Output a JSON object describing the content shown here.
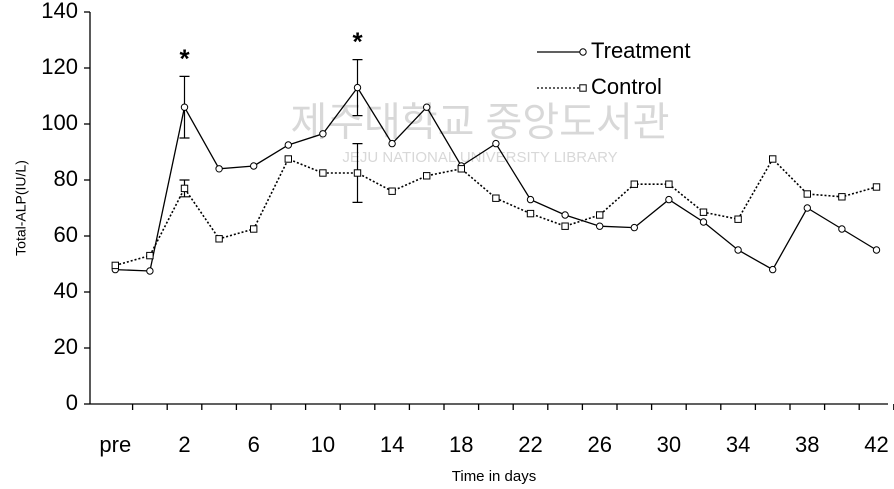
{
  "chart_data": {
    "type": "line",
    "y_label": "Total-ALP(IU/L)",
    "x_label": "Time in days",
    "watermark": [
      "제주대학교 중앙도서관",
      "JEJU NATIONAL UNIVERSITY LIBRARY"
    ],
    "categories": [
      "pre",
      null,
      "2",
      null,
      "6",
      null,
      "10",
      null,
      "14",
      null,
      "18",
      null,
      "22",
      null,
      "26",
      null,
      "30",
      null,
      "34",
      null,
      "38",
      null,
      "42"
    ],
    "series": [
      {
        "name": "Treatment",
        "color": "#000000",
        "dash": "solid",
        "marker": "circle",
        "values": [
          48,
          47.5,
          106,
          84,
          85,
          92.5,
          96.5,
          113,
          93,
          106,
          85,
          93,
          73,
          67.5,
          63.5,
          63,
          73,
          65,
          55,
          48,
          70,
          62.5,
          55
        ],
        "errors": [
          null,
          null,
          11,
          null,
          null,
          null,
          null,
          10,
          null,
          null,
          null,
          null,
          null,
          null,
          null,
          null,
          null,
          null,
          null,
          null,
          null,
          null,
          null
        ],
        "significance": [
          null,
          null,
          "*",
          null,
          null,
          null,
          null,
          "*",
          null,
          null,
          null,
          null,
          null,
          null,
          null,
          null,
          null,
          null,
          null,
          null,
          null,
          null,
          null
        ]
      },
      {
        "name": "Control",
        "color": "#000000",
        "dash": "dotted",
        "marker": "square",
        "values": [
          49.5,
          53,
          77,
          59,
          62.5,
          87.5,
          82.5,
          82.5,
          76,
          81.5,
          84,
          73.5,
          68,
          63.5,
          67.5,
          78.5,
          78.5,
          68.5,
          66,
          87.5,
          75,
          74,
          77.5
        ],
        "errors": [
          null,
          null,
          3,
          null,
          null,
          null,
          null,
          10.5,
          null,
          null,
          null,
          null,
          null,
          null,
          null,
          null,
          null,
          null,
          null,
          null,
          null,
          null,
          null
        ]
      }
    ],
    "ylim": [
      0,
      140
    ],
    "yticks": [
      0,
      20,
      40,
      60,
      80,
      100,
      120,
      140
    ],
    "legend": "top-right"
  }
}
